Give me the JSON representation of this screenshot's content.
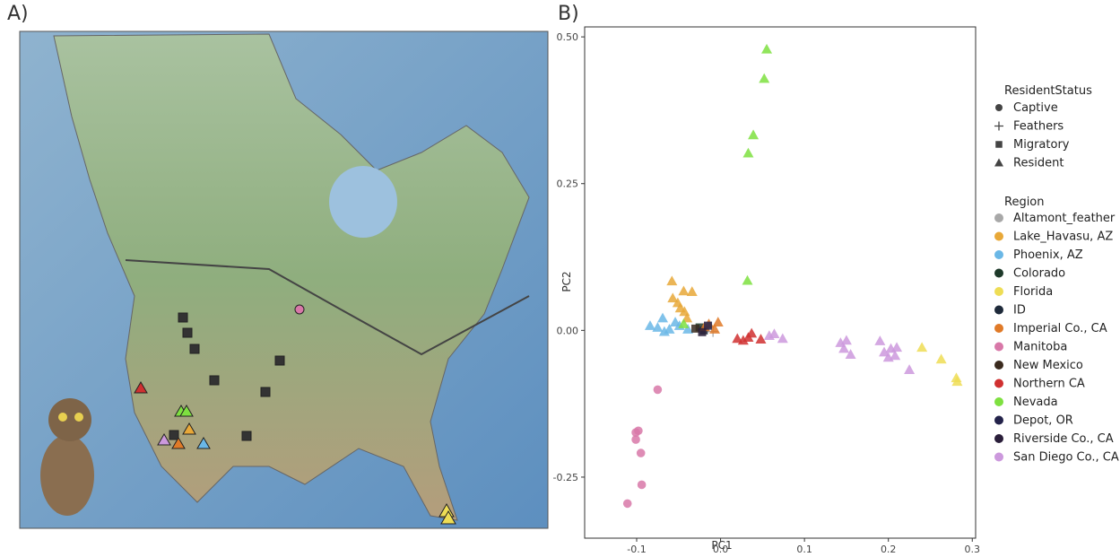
{
  "panel_labels": [
    "A)",
    "B)"
  ],
  "chart_data": {
    "type": "scatter",
    "x_label": "PC1",
    "y_label": "PC2",
    "xlim": [
      -0.162,
      0.304
    ],
    "ylim": [
      -0.354,
      0.517
    ],
    "xticks": [
      -0.1,
      {
        "value": 0,
        "label": "0.0"
      },
      0.1,
      0.2,
      0.3
    ],
    "yticks": [
      {
        "value": -0.25,
        "label": "-0.25"
      },
      {
        "value": 0,
        "label": "0.00"
      },
      {
        "value": 0.25,
        "label": "0.25"
      },
      {
        "value": 0.5,
        "label": "0.50"
      }
    ],
    "shape_legend": {
      "title": "ResidentStatus",
      "entries": [
        {
          "name": "Captive",
          "shape": "circle"
        },
        {
          "name": "Feathers",
          "shape": "cross"
        },
        {
          "name": "Migratory",
          "shape": "square"
        },
        {
          "name": "Resident",
          "shape": "triangle"
        }
      ]
    },
    "color_legend_title": "Region",
    "series": [
      {
        "name": "Altamont_feather",
        "color": "#a8a8a8",
        "shape": "cross",
        "x": [
          -0.014,
          -0.009
        ],
        "y": [
          0.006,
          -0.002
        ]
      },
      {
        "name": "Lake_Havasu, AZ",
        "color": "#e8a838",
        "shape": "triangle",
        "x": [
          -0.058,
          -0.044,
          -0.034,
          -0.057,
          -0.051,
          -0.048,
          -0.043,
          -0.04
        ],
        "y": [
          0.084,
          0.067,
          0.066,
          0.055,
          0.047,
          0.038,
          0.032,
          0.021
        ]
      },
      {
        "name": "Phoenix, AZ",
        "color": "#6ab7e6",
        "shape": "triangle",
        "x": [
          -0.084,
          -0.069,
          -0.075,
          -0.061,
          -0.054,
          -0.067,
          -0.049,
          -0.039
        ],
        "y": [
          0.008,
          0.021,
          0.005,
          0.002,
          0.014,
          -0.002,
          0.008,
          0.002
        ]
      },
      {
        "name": "Colorado",
        "color": "#1e3a2a",
        "shape": "square",
        "x": [
          -0.025
        ],
        "y": [
          0.005
        ]
      },
      {
        "name": "Florida",
        "color": "#eedd55",
        "shape": "triangle",
        "x": [
          0.24,
          0.263,
          0.281,
          0.282
        ],
        "y": [
          -0.029,
          -0.049,
          -0.081,
          -0.087
        ]
      },
      {
        "name": "ID",
        "color": "#1e2a3a",
        "shape": "square",
        "x": [
          -0.02
        ],
        "y": [
          0
        ]
      },
      {
        "name": "Imperial Co., CA",
        "color": "#e07a28",
        "shape": "triangle",
        "x": [
          -0.014,
          -0.003,
          -0.007,
          -0.019
        ],
        "y": [
          0.011,
          0.014,
          0.002,
          0.006
        ]
      },
      {
        "name": "Manitoba",
        "color": "#d878a8",
        "shape": "circle",
        "x": [
          -0.075,
          -0.098,
          -0.101,
          -0.095,
          -0.094,
          -0.111,
          -0.101
        ],
        "y": [
          -0.101,
          -0.171,
          -0.186,
          -0.209,
          -0.263,
          -0.295,
          -0.174
        ]
      },
      {
        "name": "New Mexico",
        "color": "#3a2a1e",
        "shape": "square",
        "x": [
          -0.03
        ],
        "y": [
          0.003
        ]
      },
      {
        "name": "Northern CA",
        "color": "#d03030",
        "shape": "triangle",
        "x": [
          0.02,
          0.027,
          0.033,
          0.048,
          0.037
        ],
        "y": [
          -0.014,
          -0.017,
          -0.012,
          -0.015,
          -0.005
        ]
      },
      {
        "name": "Nevada",
        "color": "#7ee040",
        "shape": "triangle",
        "x": [
          0.055,
          0.052,
          0.039,
          0.033,
          0.032,
          -0.044
        ],
        "y": [
          0.479,
          0.429,
          0.333,
          0.302,
          0.085,
          0.011
        ]
      },
      {
        "name": "Depot, OR",
        "color": "#23224a",
        "shape": "square",
        "x": [
          -0.015
        ],
        "y": [
          0.008
        ]
      },
      {
        "name": "Riverside Co., CA",
        "color": "#2a1e3a",
        "shape": "square",
        "x": [
          -0.022
        ],
        "y": [
          -0.003
        ]
      },
      {
        "name": "San Diego Co., CA",
        "color": "#cc99dd",
        "shape": "triangle",
        "x": [
          0.058,
          0.064,
          0.074,
          0.143,
          0.15,
          0.147,
          0.155,
          0.19,
          0.195,
          0.203,
          0.2,
          0.21,
          0.208,
          0.225
        ],
        "y": [
          -0.009,
          -0.006,
          -0.014,
          -0.021,
          -0.017,
          -0.031,
          -0.041,
          -0.018,
          -0.037,
          -0.031,
          -0.046,
          -0.029,
          -0.043,
          -0.067
        ]
      }
    ]
  }
}
